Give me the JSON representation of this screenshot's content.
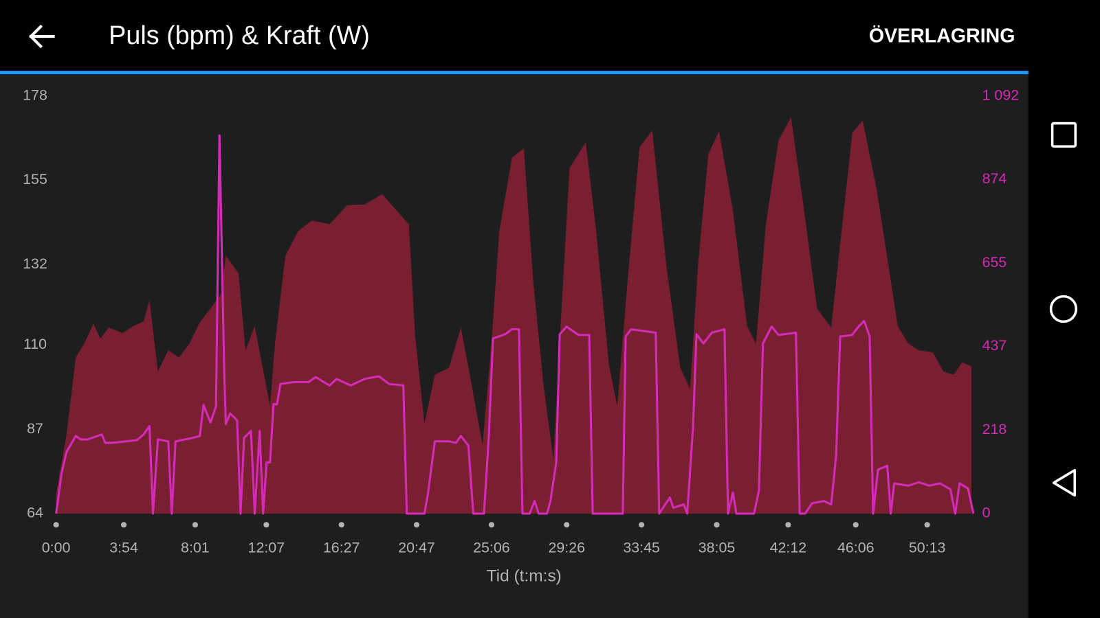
{
  "header": {
    "title": "Puls (bpm) & Kraft (W)",
    "action": "ÖVERLAGRING"
  },
  "chart_data": {
    "type": "area",
    "x_label": "Tid (t:m:s)",
    "xlim": [
      0,
      3174
    ],
    "xticks": [
      {
        "value": 0,
        "label": "0:00"
      },
      {
        "value": 234,
        "label": "3:54"
      },
      {
        "value": 481,
        "label": "8:01"
      },
      {
        "value": 727,
        "label": "12:07"
      },
      {
        "value": 987,
        "label": "16:27"
      },
      {
        "value": 1247,
        "label": "20:47"
      },
      {
        "value": 1506,
        "label": "25:06"
      },
      {
        "value": 1766,
        "label": "29:26"
      },
      {
        "value": 2025,
        "label": "33:45"
      },
      {
        "value": 2285,
        "label": "38:05"
      },
      {
        "value": 2532,
        "label": "42:12"
      },
      {
        "value": 2766,
        "label": "46:06"
      },
      {
        "value": 3013,
        "label": "50:13"
      }
    ],
    "ylim": [
      64,
      178
    ],
    "yticks": [
      64,
      87,
      110,
      132,
      155,
      178
    ],
    "y2lim": [
      0,
      1092
    ],
    "y2ticks": [
      0,
      218,
      437,
      655,
      874,
      {
        "value": 1092,
        "label": "1 092"
      }
    ],
    "y2_color": "#d42bb8",
    "grid": false,
    "series": [
      {
        "kind": "area",
        "color": "#7a1f31",
        "x": [
          0,
          36,
          68,
          97,
          129,
          153,
          182,
          230,
          267,
          303,
          323,
          352,
          388,
          425,
          461,
          497,
          534,
          570,
          587,
          631,
          655,
          687,
          740,
          757,
          793,
          837,
          885,
          946,
          1007,
          1068,
          1128,
          1177,
          1220,
          1242,
          1274,
          1310,
          1359,
          1400,
          1431,
          1475,
          1504,
          1533,
          1577,
          1618,
          1650,
          1686,
          1720,
          1747,
          1776,
          1832,
          1868,
          1912,
          1941,
          1977,
          2018,
          2062,
          2111,
          2159,
          2193,
          2220,
          2256,
          2293,
          2341,
          2390,
          2421,
          2455,
          2499,
          2542,
          2584,
          2632,
          2681,
          2717,
          2754,
          2790,
          2838,
          2887,
          2911,
          2948,
          2984,
          3033,
          3069,
          3105,
          3134,
          3166
        ],
        "values": [
          69.4,
          85.6,
          106.6,
          110.4,
          115.8,
          111.8,
          114.8,
          113.3,
          115.2,
          116.5,
          122.3,
          102.8,
          108.6,
          106.6,
          110.4,
          116.2,
          120,
          123.9,
          134.4,
          129.6,
          108.6,
          115.2,
          93.3,
          110.4,
          134.4,
          141.1,
          144,
          143,
          148.2,
          148.4,
          151.2,
          146.8,
          143,
          112.4,
          88.5,
          101.9,
          103.8,
          114.8,
          101.9,
          82.7,
          108.6,
          141.1,
          161.2,
          163.7,
          127.7,
          99,
          78.9,
          118.1,
          158.3,
          165.4,
          141.1,
          104.7,
          93.3,
          127.7,
          164,
          168.6,
          131.5,
          103.8,
          98,
          131.5,
          162.1,
          168.4,
          146.8,
          115.2,
          110.4,
          143,
          165.9,
          172.2,
          148.7,
          120,
          114.8,
          141.1,
          167.9,
          171.3,
          152.6,
          127.7,
          115.2,
          110.4,
          108.6,
          108,
          102.8,
          101.9,
          105.3,
          104.2
        ]
      },
      {
        "kind": "line",
        "axis": "y2",
        "color": "#d42bb8",
        "x": [
          0,
          19,
          36,
          68,
          85,
          109,
          158,
          170,
          194,
          279,
          303,
          323,
          335,
          352,
          388,
          400,
          413,
          473,
          497,
          510,
          534,
          553,
          565,
          582,
          587,
          602,
          626,
          638,
          650,
          674,
          687,
          704,
          716,
          728,
          740,
          752,
          764,
          776,
          825,
          873,
          898,
          946,
          970,
          1019,
          1067,
          1116,
          1152,
          1201,
          1213,
          1274,
          1286,
          1310,
          1359,
          1383,
          1400,
          1426,
          1443,
          1480,
          1497,
          1511,
          1553,
          1577,
          1601,
          1613,
          1638,
          1655,
          1669,
          1698,
          1710,
          1730,
          1742,
          1766,
          1807,
          1844,
          1856,
          1960,
          1970,
          1989,
          2074,
          2086,
          2123,
          2135,
          2171,
          2183,
          2203,
          2215,
          2239,
          2268,
          2312,
          2324,
          2341,
          2353,
          2414,
          2431,
          2445,
          2475,
          2499,
          2559,
          2572,
          2591,
          2615,
          2656,
          2681,
          2698,
          2712,
          2753,
          2778,
          2795,
          2814,
          2826,
          2843,
          2875,
          2887,
          2899,
          2948,
          2984,
          3020,
          3057,
          3093,
          3110,
          3125,
          3154,
          3173
        ],
        "values": [
          0,
          106,
          161,
          203,
          194,
          194,
          207,
          185,
          185,
          192,
          207,
          229,
          0,
          194,
          189,
          0,
          189,
          198,
          203,
          284,
          238,
          280,
          989,
          354,
          234,
          262,
          244,
          0,
          198,
          216,
          0,
          216,
          0,
          134,
          134,
          286,
          286,
          339,
          344,
          344,
          357,
          335,
          352,
          335,
          352,
          359,
          339,
          335,
          0,
          0,
          51,
          189,
          189,
          185,
          203,
          178,
          0,
          0,
          207,
          458,
          469,
          482,
          482,
          0,
          0,
          33,
          0,
          0,
          33,
          134,
          469,
          489,
          467,
          467,
          0,
          0,
          463,
          482,
          473,
          0,
          42,
          15,
          24,
          0,
          225,
          469,
          445,
          473,
          482,
          0,
          55,
          0,
          0,
          60,
          445,
          489,
          467,
          473,
          0,
          0,
          27,
          33,
          24,
          152,
          463,
          467,
          491,
          504,
          463,
          0,
          115,
          125,
          0,
          79,
          73,
          82,
          73,
          79,
          64,
          0,
          79,
          66,
          0
        ]
      }
    ]
  }
}
